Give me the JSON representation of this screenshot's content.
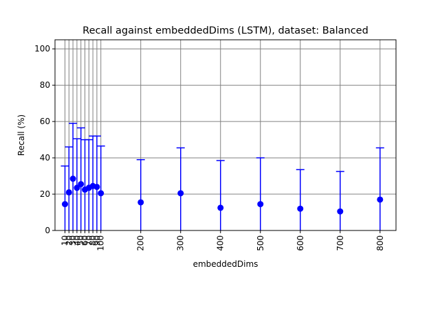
{
  "chart_data": {
    "type": "scatter",
    "title": "Recall against embeddedDims (LSTM), dataset: Balanced",
    "xlabel": "embeddedDims",
    "ylabel": "Recall (%)",
    "x_categories": [
      "10",
      "20",
      "30",
      "40",
      "50",
      "60",
      "70",
      "80",
      "90",
      "100",
      "200",
      "300",
      "400",
      "500",
      "600",
      "700",
      "800"
    ],
    "x_values": [
      10,
      20,
      30,
      40,
      50,
      60,
      70,
      80,
      90,
      100,
      200,
      300,
      400,
      500,
      600,
      700,
      800
    ],
    "y_values": [
      14.5,
      21,
      28.5,
      23.5,
      25.5,
      22.5,
      23.5,
      24.5,
      24,
      20.5,
      15.5,
      20.5,
      12.5,
      14.5,
      12,
      10.5,
      17
    ],
    "yerr": [
      21,
      25,
      30.5,
      27,
      31,
      27.5,
      26.5,
      27.5,
      28,
      26,
      23.5,
      25,
      26,
      25.5,
      21.5,
      22,
      28.5
    ],
    "xlim": [
      -15,
      840
    ],
    "ylim": [
      0,
      105
    ],
    "yticks": [
      0,
      20,
      40,
      60,
      80,
      100
    ],
    "grid": true,
    "color": "#0000ff",
    "tick_label_rotation": "vertical"
  }
}
